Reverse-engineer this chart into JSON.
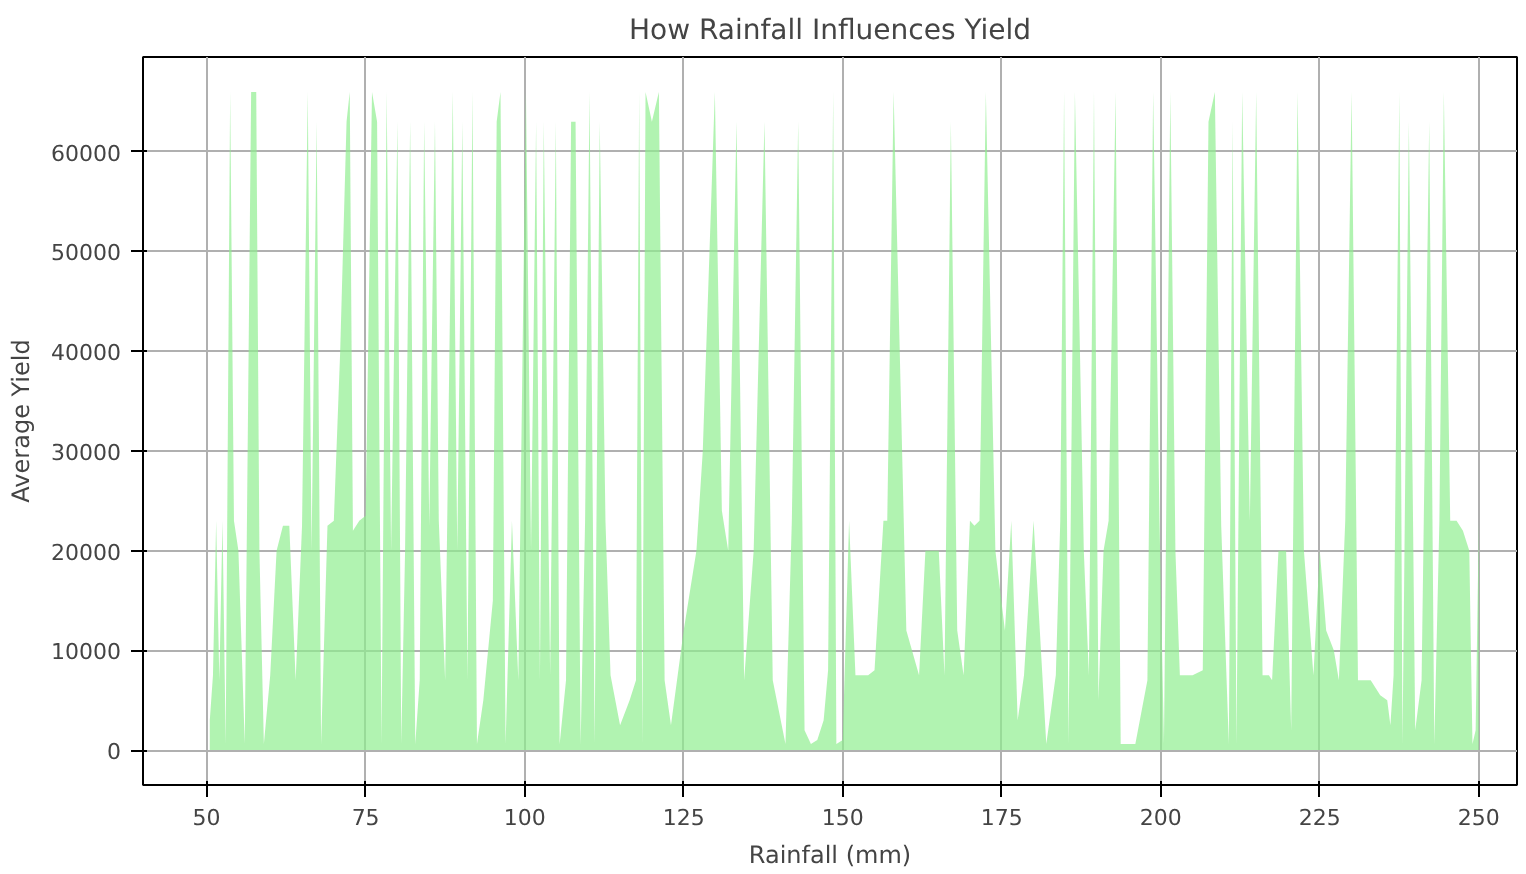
{
  "chart_data": {
    "type": "area",
    "title": "How Rainfall Influences Yield",
    "xlabel": "Rainfall (mm)",
    "ylabel": "Average Yield",
    "xlim": [
      40,
      256
    ],
    "ylim": [
      -3500,
      69500
    ],
    "xticks": [
      50,
      75,
      100,
      125,
      150,
      175,
      200,
      225,
      250
    ],
    "yticks": [
      0,
      10000,
      20000,
      30000,
      40000,
      50000,
      60000
    ],
    "grid": true,
    "series": [
      {
        "color": "#90ee90",
        "x": [
          50.5,
          51,
          51.5,
          52,
          52.5,
          53,
          53.7,
          54.3,
          55,
          56,
          57,
          57.8,
          58.3,
          59,
          60,
          61,
          62,
          63,
          64,
          65,
          65.9,
          66.5,
          67.3,
          68,
          69,
          70,
          71,
          72,
          72.5,
          73,
          74,
          75,
          76,
          76.8,
          77.5,
          78.3,
          79,
          80,
          80.6,
          81.2,
          82,
          82.8,
          83.5,
          84.2,
          85,
          85.9,
          86.5,
          87.5,
          88.7,
          89.4,
          90.2,
          91,
          91.8,
          92.5,
          93.5,
          95,
          95.6,
          96.2,
          97,
          98,
          99,
          100.2,
          101,
          101.8,
          102.4,
          103,
          104,
          104.9,
          105.5,
          106.5,
          107.3,
          108,
          108.8,
          109.5,
          110.2,
          111,
          111.8,
          112.7,
          113.5,
          115,
          116.5,
          117.5,
          118,
          118.5,
          119,
          120,
          121.1,
          122,
          123,
          125,
          127,
          128,
          129.9,
          131,
          132,
          133.3,
          134.5,
          136,
          137.7,
          139,
          141,
          142,
          143,
          144,
          145,
          146,
          147,
          147.7,
          148.5,
          149,
          150,
          151,
          152,
          153,
          154,
          155,
          156.4,
          157,
          158,
          160,
          162,
          163,
          165.1,
          166,
          167,
          168,
          169,
          170,
          170.7,
          171.5,
          172.5,
          174,
          175.5,
          176.5,
          177.5,
          178.5,
          180,
          182,
          183.5,
          184.2,
          184.8,
          185.5,
          186.5,
          187.9,
          188.7,
          189.5,
          190.2,
          191,
          191.8,
          192.9,
          193.7,
          195,
          196,
          197.9,
          198.8,
          199.8,
          200.5,
          201.5,
          202.3,
          203,
          204,
          205,
          206.6,
          207.5,
          208.5,
          209.5,
          210.7,
          211.3,
          211.9,
          212.8,
          214,
          215,
          216,
          217,
          217.5,
          218.5,
          219.7,
          220.5,
          221.5,
          222.5,
          224,
          225,
          226,
          227.2,
          228,
          229,
          230,
          231,
          233,
          234.5,
          235.6,
          236.1,
          236.6,
          237.5,
          238,
          239,
          240,
          241,
          242.2,
          243,
          243.8,
          244.5,
          245.5,
          246.5,
          247.5,
          248.5,
          249,
          249.5,
          250
        ],
        "values": [
          3000,
          7500,
          23000,
          7000,
          23000,
          600,
          66000,
          23000,
          20000,
          600,
          66000,
          66000,
          20000,
          600,
          7500,
          20000,
          22500,
          22500,
          7000,
          22500,
          66000,
          20000,
          63000,
          600,
          22500,
          23000,
          40000,
          63000,
          66000,
          22000,
          23000,
          23500,
          66000,
          63000,
          600,
          66000,
          20000,
          63000,
          600,
          20000,
          63000,
          600,
          7000,
          63000,
          22500,
          63000,
          23000,
          7000,
          66000,
          20000,
          63000,
          7000,
          66000,
          600,
          5000,
          15000,
          63000,
          66000,
          600,
          23000,
          7000,
          66000,
          20000,
          63000,
          7000,
          63000,
          7500,
          63000,
          600,
          7000,
          63000,
          63000,
          600,
          23000,
          66000,
          600,
          63000,
          23000,
          7500,
          2500,
          5000,
          7000,
          66000,
          600,
          66000,
          63000,
          66000,
          7000,
          2500,
          12000,
          20000,
          30000,
          66000,
          24000,
          20000,
          63000,
          7000,
          20000,
          63000,
          7000,
          600,
          23000,
          63000,
          2000,
          600,
          1000,
          3000,
          8000,
          66000,
          600,
          1000,
          23000,
          7500,
          7500,
          7500,
          8000,
          23000,
          23000,
          66000,
          12000,
          7500,
          20000,
          20000,
          7500,
          63000,
          12000,
          7500,
          23000,
          22500,
          23000,
          66000,
          20000,
          12000,
          23000,
          3000,
          7500,
          23000,
          600,
          7500,
          23000,
          66000,
          600,
          66000,
          20000,
          7500,
          66000,
          5000,
          20000,
          23000,
          66000,
          600,
          600,
          600,
          7000,
          66000,
          23000,
          600,
          66000,
          20000,
          7500,
          7500,
          7500,
          8000,
          63000,
          66000,
          22500,
          600,
          63000,
          600,
          66000,
          23000,
          66000,
          7500,
          7500,
          7000,
          20000,
          20000,
          2000,
          66000,
          20000,
          7500,
          20000,
          12000,
          10000,
          7000,
          23000,
          66000,
          7000,
          7000,
          5500,
          5000,
          2500,
          7500,
          66000,
          600,
          63000,
          2000,
          7000,
          63000,
          600,
          23000,
          66000,
          23000,
          23000,
          22000,
          20000,
          600,
          2000,
          23000
        ]
      }
    ]
  }
}
